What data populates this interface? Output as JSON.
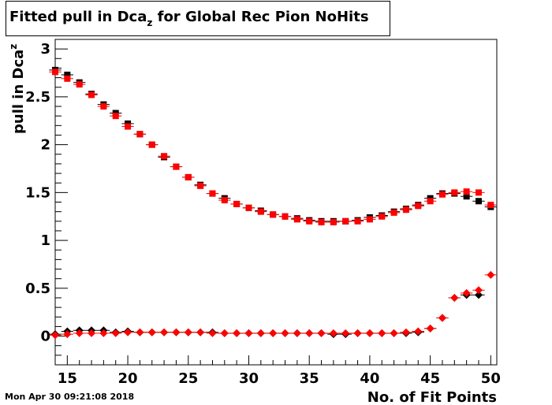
{
  "title": {
    "prefix": "Fitted pull in Dca",
    "subscript": "z",
    "suffix": " for Global Rec Pion NoHits"
  },
  "timestamp": "Mon Apr 30 09:21:08 2018",
  "chart_data": {
    "type": "scatter",
    "xlabel": "No. of Fit Points",
    "ylabel_main": "pull in Dca",
    "ylabel_sub": "z",
    "xlim": [
      14,
      50.5
    ],
    "ylim": [
      -0.3,
      3.1
    ],
    "x_ticks": [
      15,
      20,
      25,
      30,
      35,
      40,
      45,
      50
    ],
    "y_ticks": [
      0,
      0.5,
      1,
      1.5,
      2,
      2.5,
      3
    ],
    "x_tick_labels": [
      "15",
      "20",
      "25",
      "30",
      "35",
      "40",
      "45",
      "50"
    ],
    "y_tick_labels": [
      "0",
      "0.5",
      "1",
      "1.5",
      "2",
      "2.5",
      "3"
    ],
    "grid": false,
    "colors": {
      "black": "#000000",
      "red": "#ff0000"
    },
    "series": [
      {
        "color": "#000000",
        "marker": "square",
        "x": [
          14,
          15,
          16,
          17,
          18,
          19,
          20,
          21,
          22,
          23,
          24,
          25,
          26,
          27,
          28,
          29,
          30,
          31,
          32,
          33,
          34,
          35,
          36,
          37,
          38,
          39,
          40,
          41,
          42,
          43,
          44,
          45,
          46,
          47,
          48,
          49,
          50
        ],
        "y": [
          2.78,
          2.73,
          2.65,
          2.53,
          2.42,
          2.33,
          2.22,
          2.11,
          2.0,
          1.87,
          1.77,
          1.66,
          1.58,
          1.49,
          1.44,
          1.38,
          1.34,
          1.31,
          1.27,
          1.25,
          1.23,
          1.21,
          1.2,
          1.2,
          1.2,
          1.21,
          1.24,
          1.26,
          1.3,
          1.33,
          1.37,
          1.44,
          1.49,
          1.49,
          1.46,
          1.41,
          1.35
        ]
      },
      {
        "color": "#ff0000",
        "marker": "square",
        "x": [
          14,
          15,
          16,
          17,
          18,
          19,
          20,
          21,
          22,
          23,
          24,
          25,
          26,
          27,
          28,
          29,
          30,
          31,
          32,
          33,
          34,
          35,
          36,
          37,
          38,
          39,
          40,
          41,
          42,
          43,
          44,
          45,
          46,
          47,
          48,
          49,
          50
        ],
        "y": [
          2.76,
          2.69,
          2.63,
          2.52,
          2.4,
          2.3,
          2.19,
          2.11,
          2.0,
          1.88,
          1.77,
          1.66,
          1.57,
          1.49,
          1.42,
          1.38,
          1.34,
          1.3,
          1.27,
          1.25,
          1.22,
          1.2,
          1.19,
          1.19,
          1.2,
          1.2,
          1.22,
          1.25,
          1.29,
          1.32,
          1.36,
          1.41,
          1.48,
          1.5,
          1.51,
          1.5,
          1.37
        ]
      },
      {
        "color": "#000000",
        "marker": "diamond",
        "x": [
          14,
          15,
          16,
          17,
          18,
          19,
          20,
          21,
          22,
          23,
          24,
          25,
          26,
          27,
          28,
          29,
          30,
          31,
          32,
          33,
          34,
          35,
          36,
          37,
          38,
          39,
          40,
          41,
          42,
          43,
          44,
          45,
          46,
          47,
          48,
          49
        ],
        "y": [
          0.02,
          0.05,
          0.06,
          0.06,
          0.06,
          0.04,
          0.05,
          0.04,
          0.04,
          0.04,
          0.04,
          0.04,
          0.04,
          0.04,
          0.03,
          0.03,
          0.03,
          0.03,
          0.03,
          0.03,
          0.03,
          0.03,
          0.03,
          0.02,
          0.02,
          0.03,
          0.03,
          0.03,
          0.03,
          0.03,
          0.04,
          0.08,
          0.19,
          0.4,
          0.43,
          0.43
        ]
      },
      {
        "color": "#ff0000",
        "marker": "diamond",
        "x": [
          14,
          15,
          16,
          17,
          18,
          19,
          20,
          21,
          22,
          23,
          24,
          25,
          26,
          27,
          28,
          29,
          30,
          31,
          32,
          33,
          34,
          35,
          36,
          37,
          38,
          39,
          40,
          41,
          42,
          43,
          44,
          45,
          46,
          47,
          48,
          49,
          50
        ],
        "y": [
          0.01,
          0.02,
          0.03,
          0.03,
          0.03,
          0.03,
          0.04,
          0.04,
          0.04,
          0.04,
          0.04,
          0.04,
          0.04,
          0.03,
          0.03,
          0.03,
          0.03,
          0.03,
          0.03,
          0.03,
          0.03,
          0.03,
          0.03,
          0.03,
          0.03,
          0.03,
          0.03,
          0.03,
          0.03,
          0.04,
          0.05,
          0.08,
          0.19,
          0.4,
          0.45,
          0.48,
          0.64
        ]
      }
    ]
  }
}
